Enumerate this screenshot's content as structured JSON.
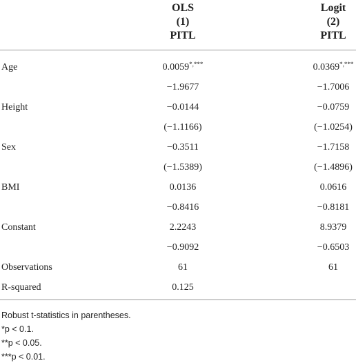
{
  "table": {
    "header": [
      [
        "OLS",
        "(1)",
        "PITL"
      ],
      [
        "Logit",
        "(2)",
        "PITL"
      ]
    ],
    "rows": [
      {
        "label": "Age",
        "cells": [
          {
            "text": "0.0059",
            "sup": "*,***"
          },
          {
            "text": "0.0369",
            "sup": "*,***"
          }
        ]
      },
      {
        "label": null,
        "cells": [
          {
            "text": "−1.9677"
          },
          {
            "text": "−1.7006"
          }
        ]
      },
      {
        "label": "Height",
        "cells": [
          {
            "text": "−0.0144"
          },
          {
            "text": "−0.0759"
          }
        ]
      },
      {
        "label": null,
        "cells": [
          {
            "text": "(−1.1166)"
          },
          {
            "text": "(−1.0254)"
          }
        ]
      },
      {
        "label": "Sex",
        "cells": [
          {
            "text": "−0.3511"
          },
          {
            "text": "−1.7158"
          }
        ]
      },
      {
        "label": null,
        "cells": [
          {
            "text": "(−1.5389)"
          },
          {
            "text": "(−1.4896)"
          }
        ]
      },
      {
        "label": "BMI",
        "cells": [
          {
            "text": "0.0136"
          },
          {
            "text": "0.0616"
          }
        ]
      },
      {
        "label": null,
        "cells": [
          {
            "text": "−0.8416"
          },
          {
            "text": "−0.8181"
          }
        ]
      },
      {
        "label": "Constant",
        "cells": [
          {
            "text": "2.2243"
          },
          {
            "text": "8.9379"
          }
        ]
      },
      {
        "label": null,
        "cells": [
          {
            "text": "−0.9092"
          },
          {
            "text": "−0.6503"
          }
        ]
      },
      {
        "label": "Observations",
        "cells": [
          {
            "text": "61"
          },
          {
            "text": "61"
          }
        ]
      },
      {
        "label": "R-squared",
        "cells": [
          {
            "text": "0.125"
          },
          null
        ]
      }
    ]
  },
  "notes": [
    "Robust t-statistics in parentheses.",
    "*p < 0.1.",
    "**p < 0.05.",
    "***p < 0.01."
  ]
}
